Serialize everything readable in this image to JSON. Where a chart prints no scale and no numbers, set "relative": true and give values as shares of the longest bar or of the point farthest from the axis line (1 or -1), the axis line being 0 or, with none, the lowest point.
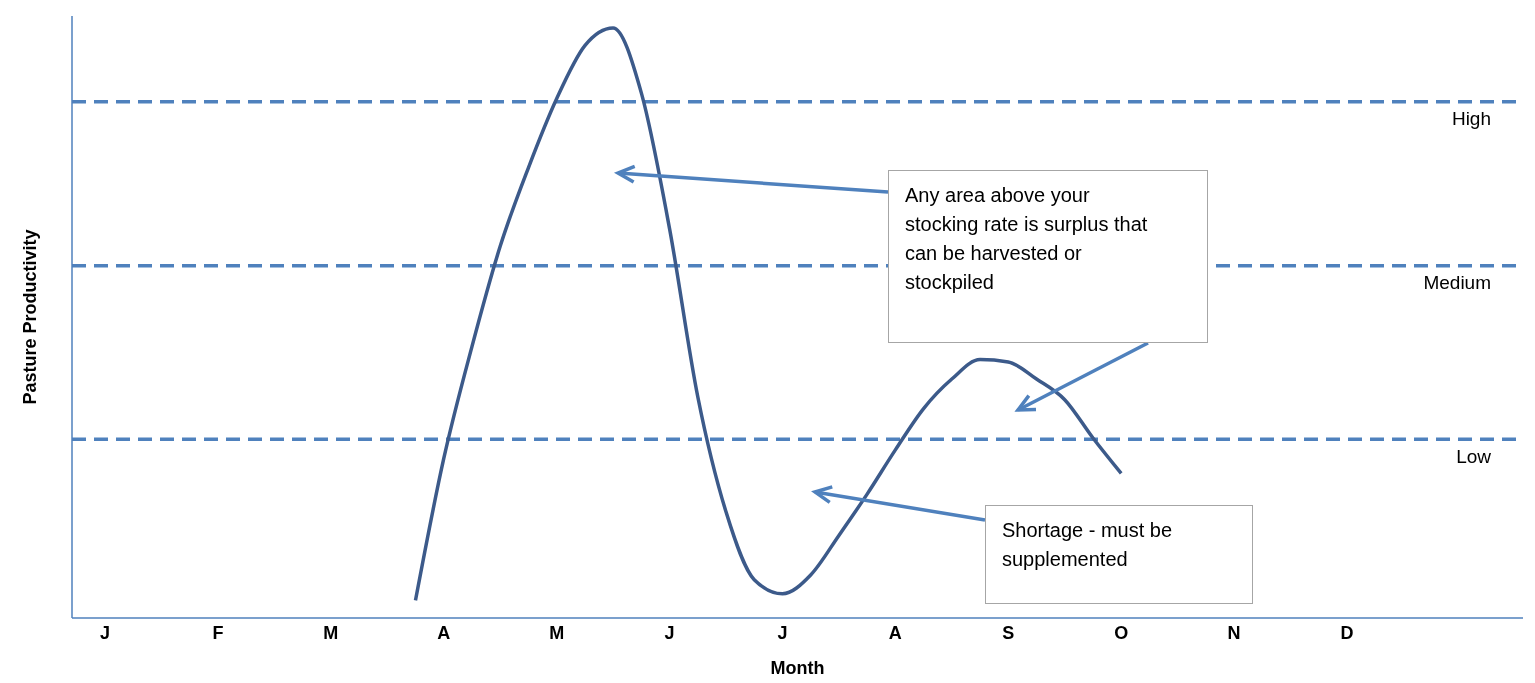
{
  "chart_data": {
    "type": "line",
    "relative": true,
    "xlabel": "Month",
    "ylabel": "Pasture Productivity",
    "categories": [
      "J",
      null,
      null,
      null,
      "F",
      null,
      null,
      null,
      "M",
      null,
      null,
      null,
      "A",
      null,
      null,
      null,
      "M",
      null,
      null,
      null,
      "J",
      null,
      null,
      null,
      "J",
      null,
      null,
      null,
      "A",
      null,
      null,
      null,
      "S",
      null,
      null,
      null,
      "O",
      null,
      null,
      null,
      "N",
      null,
      null,
      null,
      "D"
    ],
    "series": [
      {
        "color": "#3c5a8a",
        "values": [
          null,
          null,
          null,
          null,
          null,
          null,
          null,
          null,
          null,
          null,
          null,
          0.03,
          0.27,
          0.46,
          0.63,
          0.763,
          0.88,
          0.97,
          1.0,
          0.89,
          0.66,
          0.375,
          0.18,
          0.065,
          0.041,
          0.073,
          0.14,
          0.21,
          0.285,
          0.355,
          0.405,
          0.438,
          0.434,
          0.405,
          0.37,
          0.305,
          0.245,
          null,
          null,
          null,
          null,
          null,
          null,
          null,
          null
        ]
      }
    ],
    "ref_lines": [
      {
        "axis": "y",
        "value": 0.875,
        "label": "High",
        "color": "#4f81bd",
        "line_style": "dashed"
      },
      {
        "axis": "y",
        "value": 0.597,
        "label": "Medium",
        "color": "#4f81bd",
        "line_style": "dashed"
      },
      {
        "axis": "y",
        "value": 0.303,
        "label": "Low",
        "color": "#4f81bd",
        "line_style": "dashed"
      }
    ],
    "annotations": [
      "Any area above your stocking rate is surplus that can be harvested or stockpiled",
      "Shortage - must be supplemented"
    ],
    "marker": "none",
    "line_style": "solid"
  }
}
